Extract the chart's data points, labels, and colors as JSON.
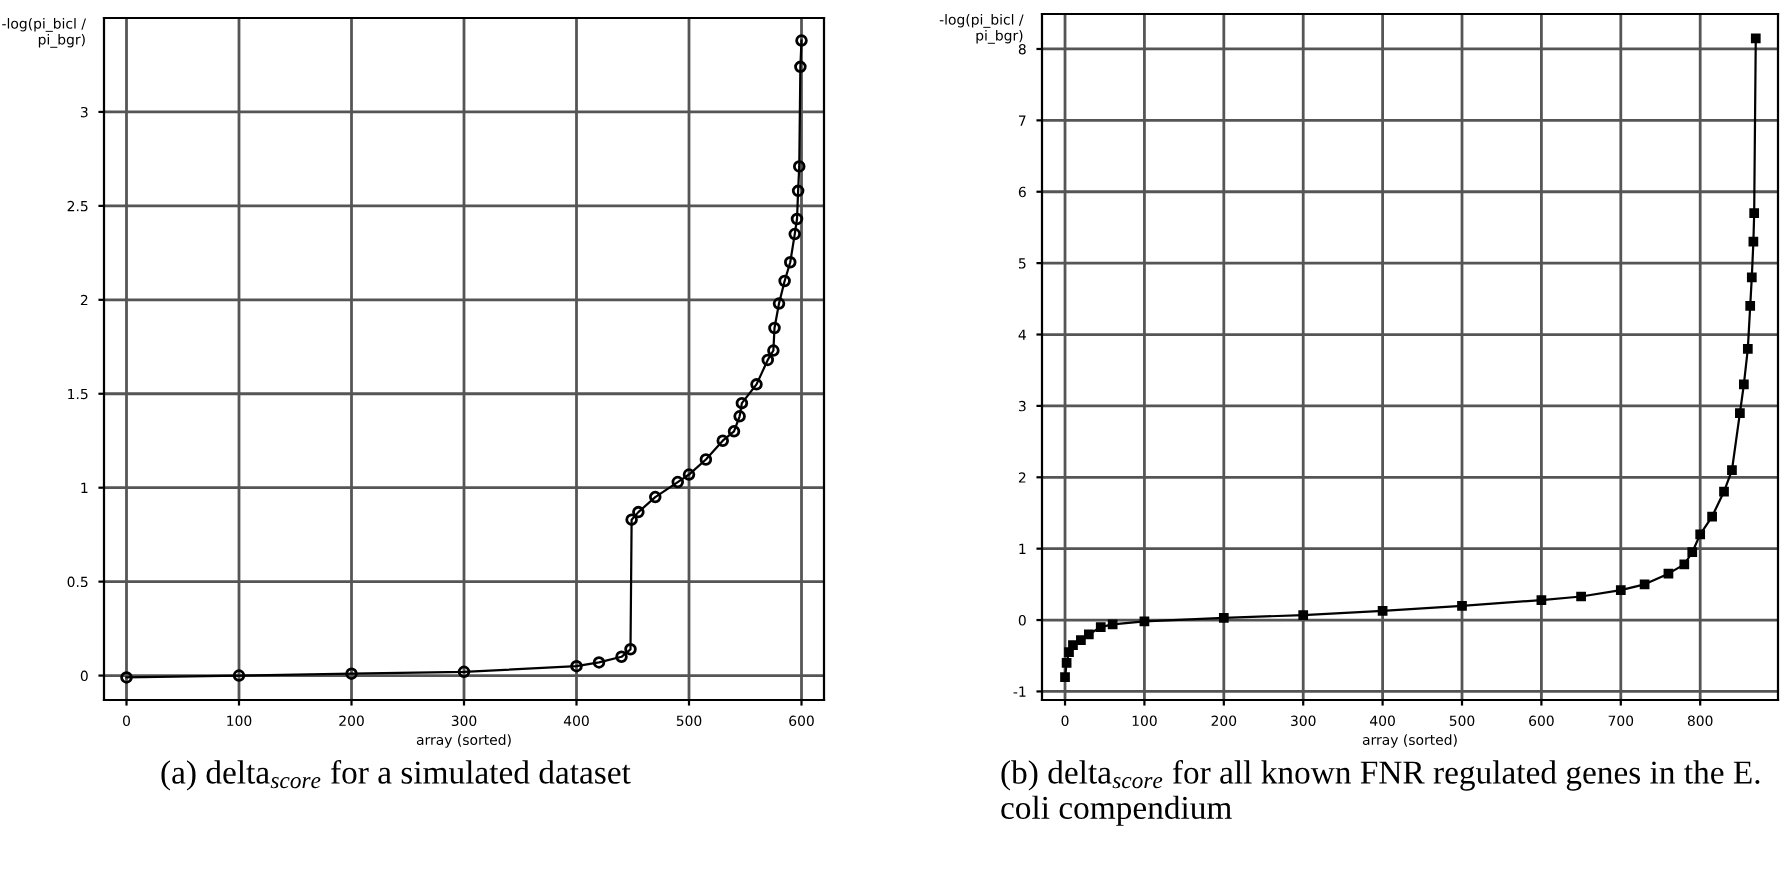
{
  "chart_data": [
    {
      "type": "line",
      "ylabel": "-log(pi_bicl /\npi_bgr)",
      "xlabel": "array (sorted)",
      "marker": "circle",
      "grid": true,
      "color": "#000000",
      "x": [
        0,
        100,
        200,
        300,
        400,
        420,
        440,
        448,
        449,
        455,
        470,
        490,
        500,
        515,
        530,
        540,
        545,
        547,
        560,
        570,
        575,
        576,
        580,
        585,
        590,
        594,
        596,
        597,
        598,
        599,
        600
      ],
      "values": [
        -0.01,
        0.0,
        0.01,
        0.02,
        0.05,
        0.07,
        0.1,
        0.14,
        0.83,
        0.87,
        0.95,
        1.03,
        1.07,
        1.15,
        1.25,
        1.3,
        1.38,
        1.45,
        1.55,
        1.68,
        1.73,
        1.85,
        1.98,
        2.1,
        2.2,
        2.35,
        2.43,
        2.58,
        2.71,
        3.24,
        3.38
      ],
      "xlim": [
        -20,
        620
      ],
      "xticks": [
        0,
        100,
        200,
        300,
        400,
        500,
        600
      ],
      "ylim": [
        -0.13,
        3.5
      ],
      "yticks": [
        0,
        0.5,
        1,
        1.5,
        2,
        2.5,
        3
      ],
      "annotations": [
        "(a) delta$_{score}$ for a simulated dataset"
      ]
    },
    {
      "type": "line",
      "ylabel": "-log(pi_bicl /\npi_bgr)",
      "xlabel": "array (sorted)",
      "marker": "square",
      "grid": true,
      "color": "#000000",
      "x": [
        0,
        2,
        5,
        10,
        20,
        30,
        45,
        60,
        100,
        200,
        300,
        400,
        500,
        600,
        650,
        700,
        730,
        760,
        780,
        790,
        800,
        815,
        830,
        840,
        850,
        855,
        860,
        863,
        865,
        867,
        868,
        870
      ],
      "values": [
        -0.8,
        -0.6,
        -0.45,
        -0.35,
        -0.28,
        -0.2,
        -0.1,
        -0.06,
        -0.02,
        0.03,
        0.07,
        0.13,
        0.2,
        0.28,
        0.33,
        0.42,
        0.5,
        0.65,
        0.78,
        0.95,
        1.2,
        1.45,
        1.8,
        2.1,
        2.9,
        3.3,
        3.8,
        4.4,
        4.8,
        5.3,
        5.7,
        8.15
      ],
      "xlim": [
        -29,
        898
      ],
      "xticks": [
        0,
        100,
        200,
        300,
        400,
        500,
        600,
        700,
        800
      ],
      "ylim": [
        -1.12,
        8.49
      ],
      "yticks": [
        -1,
        0,
        1,
        2,
        3,
        4,
        5,
        6,
        7,
        8
      ],
      "annotations": [
        "(b) delta$_{score}$ for all known FNR regulated genes in the E. coli compendium"
      ]
    }
  ]
}
